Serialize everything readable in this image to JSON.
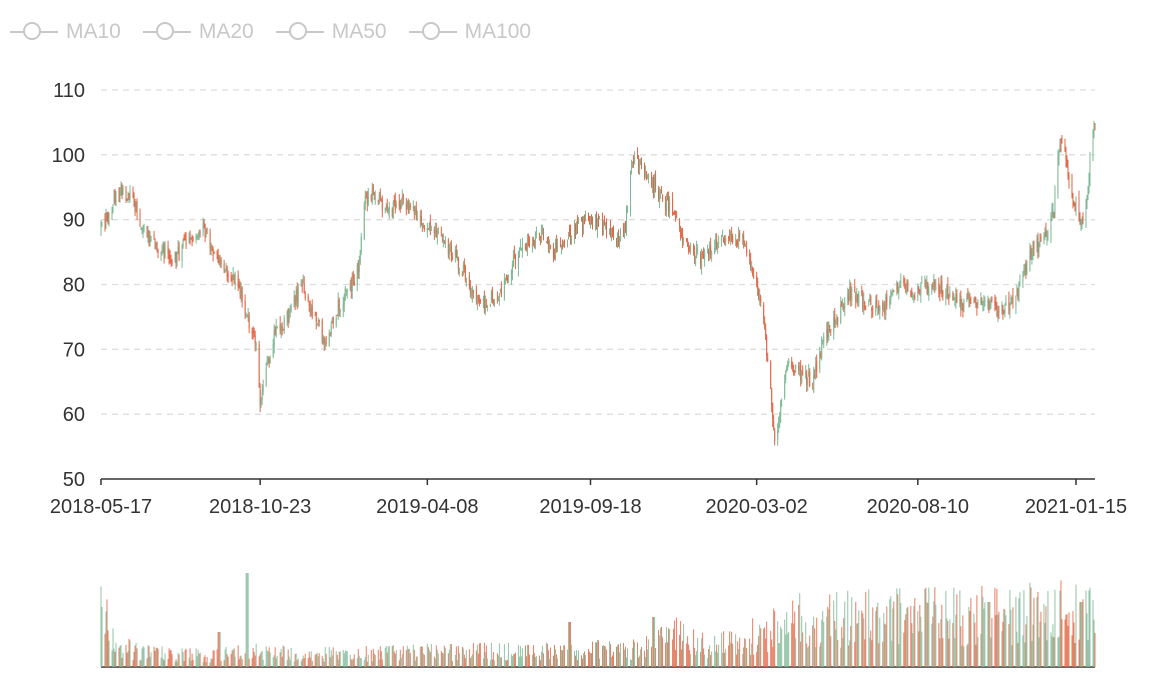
{
  "legend": {
    "items": [
      {
        "label": "MA10"
      },
      {
        "label": "MA20"
      },
      {
        "label": "MA50"
      },
      {
        "label": "MA100"
      }
    ]
  },
  "colors": {
    "up": "#7fb896",
    "down": "#e06848",
    "legend_inactive": "#c8c8c8",
    "grid": "#dddddd",
    "axis": "#333333"
  },
  "chart_data": {
    "type": "candlestick",
    "ylim": [
      50,
      110
    ],
    "yticks": [
      50,
      60,
      70,
      80,
      90,
      100,
      110
    ],
    "xtick_labels": [
      "2018-05-17",
      "2018-10-23",
      "2019-04-08",
      "2019-09-18",
      "2020-03-02",
      "2020-08-10",
      "2021-01-15"
    ],
    "x_range": [
      "2018-05-17",
      "2021-02-03"
    ],
    "grid": true,
    "grid_style": "dashed",
    "legend_position": "top-left",
    "price_path": [
      [
        "2018-05-17",
        88
      ],
      [
        "2018-05-28",
        92
      ],
      [
        "2018-06-08",
        95
      ],
      [
        "2018-06-20",
        92
      ],
      [
        "2018-07-03",
        87
      ],
      [
        "2018-07-16",
        85
      ],
      [
        "2018-07-30",
        84
      ],
      [
        "2018-08-13",
        87
      ],
      [
        "2018-08-27",
        89
      ],
      [
        "2018-09-10",
        84
      ],
      [
        "2018-09-20",
        82
      ],
      [
        "2018-10-01",
        80
      ],
      [
        "2018-10-10",
        75
      ],
      [
        "2018-10-20",
        70
      ],
      [
        "2018-10-23",
        61
      ],
      [
        "2018-10-29",
        67
      ],
      [
        "2018-11-08",
        73
      ],
      [
        "2018-11-20",
        75
      ],
      [
        "2018-12-03",
        80
      ],
      [
        "2018-12-14",
        76
      ],
      [
        "2018-12-27",
        71
      ],
      [
        "2019-01-07",
        76
      ],
      [
        "2019-01-18",
        79
      ],
      [
        "2019-01-29",
        82
      ],
      [
        "2019-02-05",
        93
      ],
      [
        "2019-02-14",
        94
      ],
      [
        "2019-03-01",
        91
      ],
      [
        "2019-03-15",
        93
      ],
      [
        "2019-04-08",
        89
      ],
      [
        "2019-04-22",
        87
      ],
      [
        "2019-05-07",
        84
      ],
      [
        "2019-05-20",
        80
      ],
      [
        "2019-06-03",
        77
      ],
      [
        "2019-06-17",
        78
      ],
      [
        "2019-07-01",
        83
      ],
      [
        "2019-07-15",
        86
      ],
      [
        "2019-07-29",
        88
      ],
      [
        "2019-08-12",
        85
      ],
      [
        "2019-08-26",
        87
      ],
      [
        "2019-09-05",
        89
      ],
      [
        "2019-09-18",
        90
      ],
      [
        "2019-10-01",
        89
      ],
      [
        "2019-10-15",
        87
      ],
      [
        "2019-10-23",
        89
      ],
      [
        "2019-10-30",
        100
      ],
      [
        "2019-11-10",
        98
      ],
      [
        "2019-11-25",
        94
      ],
      [
        "2019-12-10",
        91
      ],
      [
        "2019-12-23",
        86
      ],
      [
        "2020-01-06",
        84
      ],
      [
        "2020-01-20",
        86
      ],
      [
        "2020-02-03",
        87
      ],
      [
        "2020-02-17",
        87
      ],
      [
        "2020-02-25",
        83
      ],
      [
        "2020-03-02",
        80
      ],
      [
        "2020-03-09",
        74
      ],
      [
        "2020-03-16",
        63
      ],
      [
        "2020-03-20",
        56
      ],
      [
        "2020-03-27",
        62
      ],
      [
        "2020-04-03",
        68
      ],
      [
        "2020-04-17",
        66
      ],
      [
        "2020-04-27",
        65
      ],
      [
        "2020-05-08",
        72
      ],
      [
        "2020-05-22",
        75
      ],
      [
        "2020-06-05",
        79
      ],
      [
        "2020-06-19",
        77
      ],
      [
        "2020-07-06",
        76
      ],
      [
        "2020-07-20",
        80
      ],
      [
        "2020-08-03",
        79
      ],
      [
        "2020-08-10",
        79
      ],
      [
        "2020-08-24",
        80
      ],
      [
        "2020-09-07",
        79
      ],
      [
        "2020-09-21",
        77
      ],
      [
        "2020-10-05",
        77
      ],
      [
        "2020-10-19",
        77
      ],
      [
        "2020-11-02",
        76
      ],
      [
        "2020-11-16",
        78
      ],
      [
        "2020-11-30",
        85
      ],
      [
        "2020-12-14",
        87
      ],
      [
        "2020-12-24",
        92
      ],
      [
        "2020-12-30",
        102
      ],
      [
        "2021-01-05",
        99
      ],
      [
        "2021-01-11",
        94
      ],
      [
        "2021-01-15",
        92
      ],
      [
        "2021-01-21",
        89
      ],
      [
        "2021-01-27",
        96
      ],
      [
        "2021-02-03",
        105
      ]
    ],
    "volume_profile": [
      [
        "2018-05-17",
        0.9
      ],
      [
        "2018-06-01",
        0.35
      ],
      [
        "2018-07-01",
        0.22
      ],
      [
        "2018-09-01",
        0.18
      ],
      [
        "2018-10-23",
        0.25
      ],
      [
        "2019-01-01",
        0.2
      ],
      [
        "2019-05-01",
        0.24
      ],
      [
        "2019-08-01",
        0.26
      ],
      [
        "2019-11-01",
        0.28
      ],
      [
        "2019-12-15",
        0.55
      ],
      [
        "2020-01-15",
        0.3
      ],
      [
        "2020-03-01",
        0.5
      ],
      [
        "2020-04-15",
        0.75
      ],
      [
        "2020-08-10",
        0.8
      ],
      [
        "2020-12-01",
        0.85
      ],
      [
        "2021-02-03",
        0.9
      ]
    ],
    "volume_spikes": [
      [
        "2018-05-18",
        0.6
      ],
      [
        "2018-09-12",
        0.35
      ],
      [
        "2018-10-10",
        0.94
      ],
      [
        "2019-08-28",
        0.45
      ],
      [
        "2019-11-20",
        0.5
      ],
      [
        "2020-05-10",
        0.5
      ],
      [
        "2020-08-01",
        0.6
      ],
      [
        "2020-10-20",
        0.65
      ],
      [
        "2020-11-15",
        0.7
      ],
      [
        "2021-01-20",
        0.65
      ]
    ]
  }
}
